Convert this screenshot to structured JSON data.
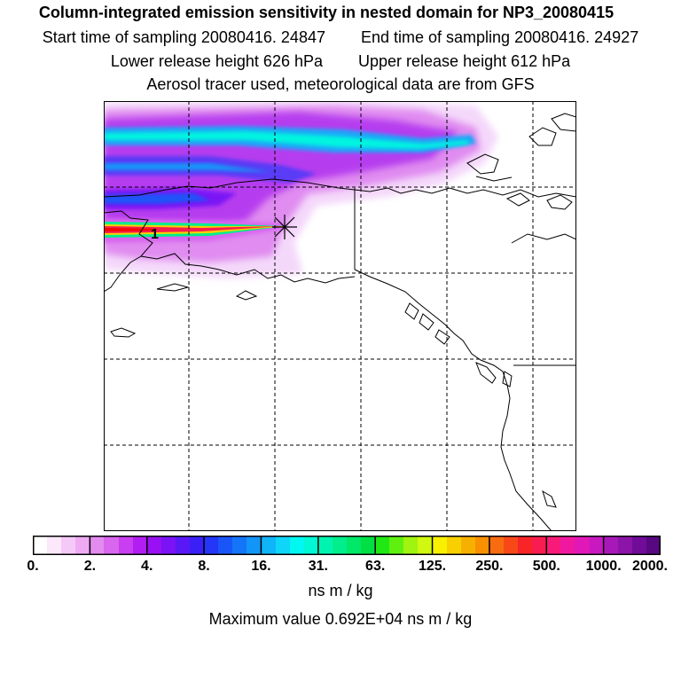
{
  "header": {
    "title": "Column-integrated emission sensitivity in nested domain for NP3_20080415",
    "start_label": "Start time of sampling 20080416. 24847",
    "end_label": "End time of sampling 20080416. 24927",
    "lower_label": "Lower release height  626 hPa",
    "upper_label": "Upper release height  612 hPa",
    "tracer_label": "Aerosol tracer used, meteorological data are from GFS"
  },
  "map": {
    "release_marker_label": "1",
    "release_marker_symbol": "x-cross"
  },
  "colorbar": {
    "colors": [
      "#ffffff",
      "#fbe8fb",
      "#f5c9f7",
      "#eeaaf3",
      "#e48bef",
      "#d866ee",
      "#c83ef0",
      "#b21df2",
      "#9a10f4",
      "#7a13f5",
      "#5a18f6",
      "#3a20f7",
      "#2436f8",
      "#1a55f8",
      "#1475f8",
      "#1295f8",
      "#0fb5f8",
      "#0fd5f8",
      "#00f8f0",
      "#00f8d5",
      "#00f4b0",
      "#00ee8c",
      "#00e868",
      "#00e044",
      "#20e814",
      "#60f010",
      "#a0f410",
      "#d0f810",
      "#f8f000",
      "#f8d000",
      "#f8b000",
      "#f89000",
      "#f86c10",
      "#f84818",
      "#f82428",
      "#f81c50",
      "#f81a78",
      "#f018a0",
      "#e018b8",
      "#c818c0",
      "#a818b8",
      "#8c14a8",
      "#700c98",
      "#580880"
    ],
    "tick_labels": [
      "0.",
      "2.",
      "4.",
      "8.",
      "16.",
      "31.",
      "63.",
      "125.",
      "250.",
      "500.",
      "1000.",
      "2000."
    ],
    "units": "ns m / kg",
    "max_label": "Maximum value  0.692E+04 ns m / kg"
  },
  "colors": {
    "frame": "#000000",
    "coast": "#000000",
    "grid": "#000000"
  }
}
